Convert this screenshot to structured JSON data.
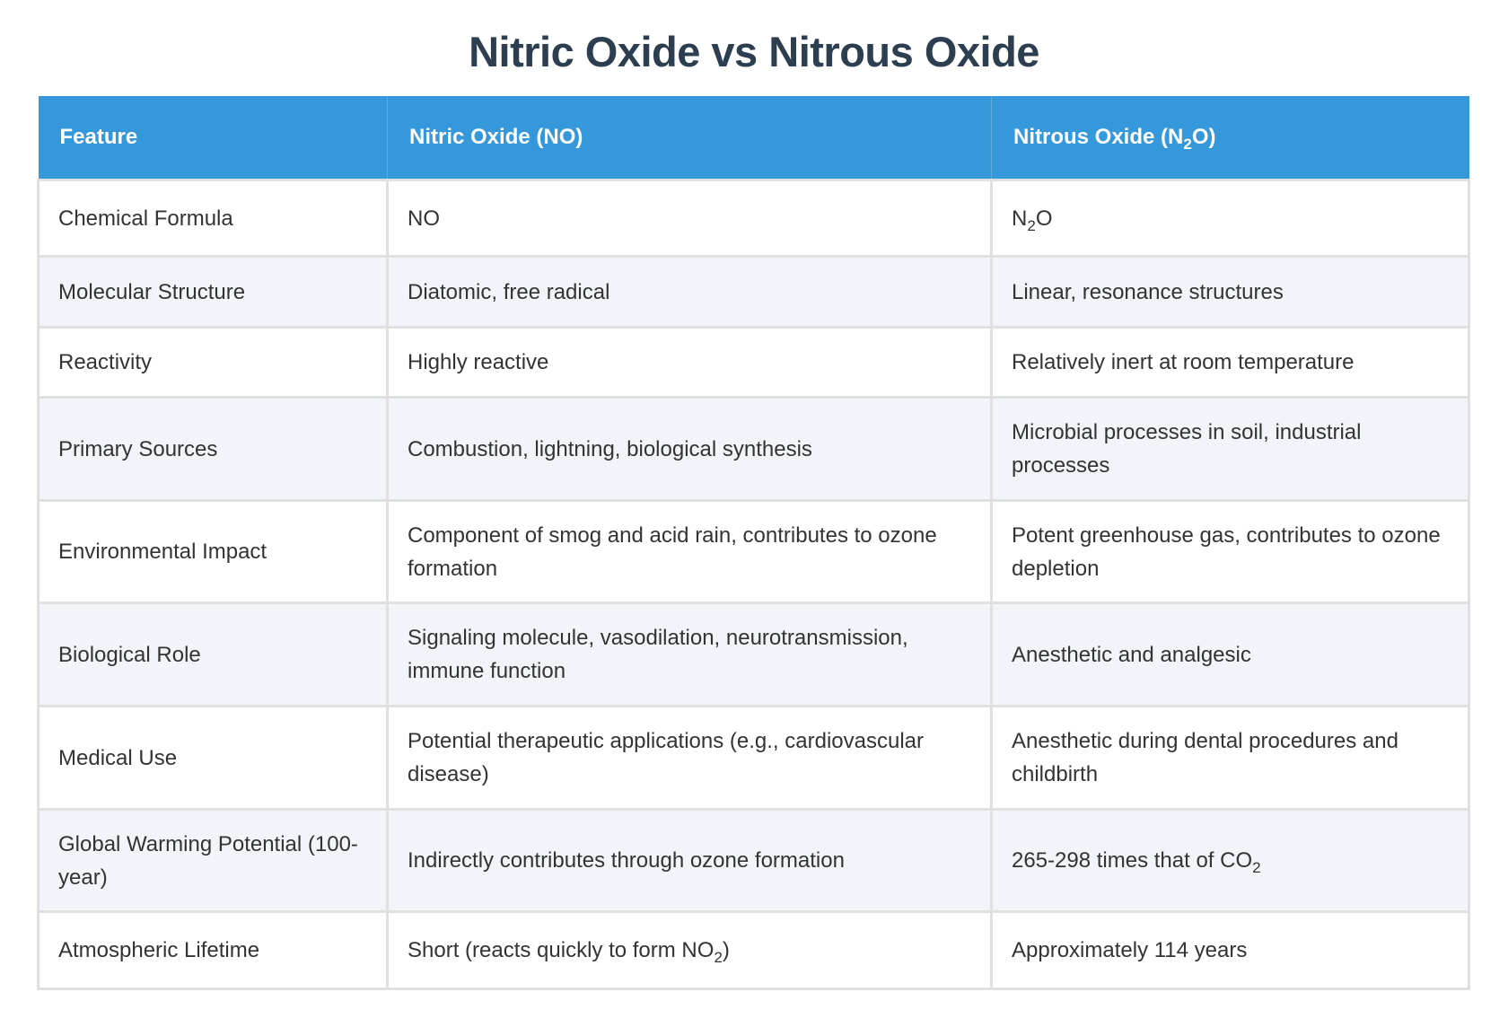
{
  "title": "Nitric Oxide vs Nitrous Oxide",
  "headers": [
    [
      {
        "t": "Feature"
      }
    ],
    [
      {
        "t": "Nitric Oxide (NO)"
      }
    ],
    [
      {
        "t": "Nitrous Oxide (N"
      },
      {
        "sub": "2"
      },
      {
        "t": "O)"
      }
    ]
  ],
  "rows": [
    {
      "heights": 85,
      "cells": [
        [
          {
            "t": "Chemical Formula"
          }
        ],
        [
          {
            "t": "NO"
          }
        ],
        [
          {
            "t": "N"
          },
          {
            "sub": "2"
          },
          {
            "t": "O"
          }
        ]
      ]
    },
    {
      "heights": 79,
      "cells": [
        [
          {
            "t": "Molecular Structure"
          }
        ],
        [
          {
            "t": "Diatomic, free radical"
          }
        ],
        [
          {
            "t": "Linear, resonance structures"
          }
        ]
      ]
    },
    {
      "heights": 78,
      "cells": [
        [
          {
            "t": "Reactivity"
          }
        ],
        [
          {
            "t": "Highly reactive"
          }
        ],
        [
          {
            "t": "Relatively inert at room temperature"
          }
        ]
      ]
    },
    {
      "heights": 115,
      "cells": [
        [
          {
            "t": "Primary Sources"
          }
        ],
        [
          {
            "t": "Combustion, lightning, biological synthesis"
          }
        ],
        [
          {
            "t": "Microbial processes in soil, industrial processes"
          }
        ]
      ]
    },
    {
      "heights": 114,
      "cells": [
        [
          {
            "t": "Environmental Impact"
          }
        ],
        [
          {
            "t": "Component of smog and acid rain, contributes to ozone formation"
          }
        ],
        [
          {
            "t": "Potent greenhouse gas, contributes to ozone depletion"
          }
        ]
      ]
    },
    {
      "heights": 115,
      "cells": [
        [
          {
            "t": "Biological Role"
          }
        ],
        [
          {
            "t": "Signaling molecule, vasodilation, neurotransmission, immune function"
          }
        ],
        [
          {
            "t": "Anesthetic and analgesic"
          }
        ]
      ]
    },
    {
      "heights": 115,
      "cells": [
        [
          {
            "t": "Medical Use"
          }
        ],
        [
          {
            "t": "Potential therapeutic applications (e.g., cardiovascular disease)"
          }
        ],
        [
          {
            "t": "Anesthetic during dental procedures and childbirth"
          }
        ]
      ]
    },
    {
      "heights": 114,
      "cells": [
        [
          {
            "t": "Global Warming Potential (100-year)"
          }
        ],
        [
          {
            "t": "Indirectly contributes through ozone formation"
          }
        ],
        [
          {
            "t": "265-298 times that of CO"
          },
          {
            "sub": "2"
          }
        ]
      ]
    },
    {
      "heights": 86,
      "cells": [
        [
          {
            "t": "Atmospheric Lifetime"
          }
        ],
        [
          {
            "t": "Short (reacts quickly to form NO"
          },
          {
            "sub": "2"
          },
          {
            "t": ")"
          }
        ],
        [
          {
            "t": "Approximately 114 years"
          }
        ]
      ]
    }
  ],
  "colors": {
    "header_bg": "#3498db",
    "title": "#2c3e50",
    "alt_row": "#f1f4f9"
  }
}
